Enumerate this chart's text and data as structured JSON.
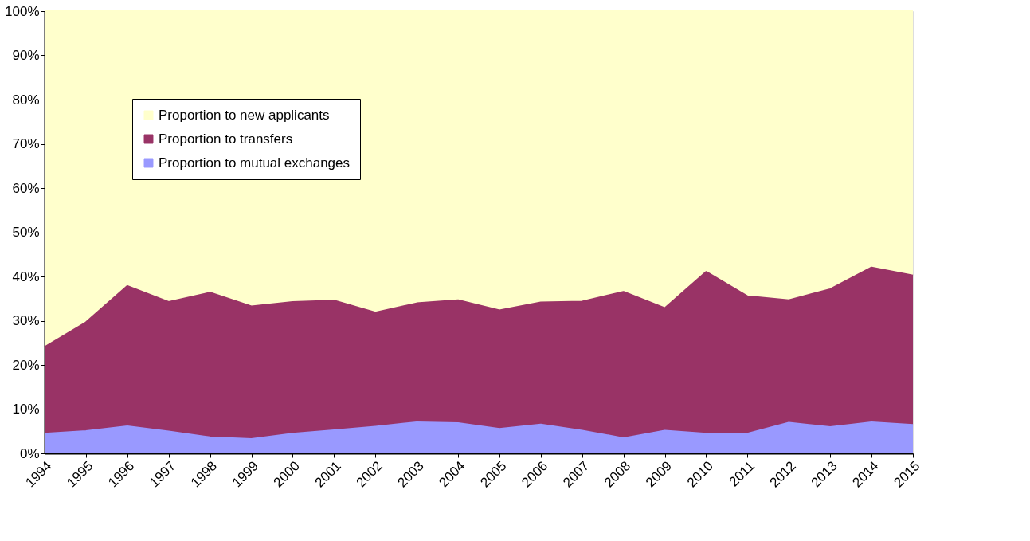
{
  "chart_data": {
    "type": "area",
    "stacked": true,
    "categories": [
      "1994",
      "1995",
      "1996",
      "1997",
      "1998",
      "1999",
      "2000",
      "2001",
      "2002",
      "2003",
      "2004",
      "2005",
      "2006",
      "2007",
      "2008",
      "2009",
      "2010",
      "2011",
      "2012",
      "2013",
      "2014",
      "2015"
    ],
    "series": [
      {
        "name": "Proportion to mutual exchanges",
        "color": "#9999ff",
        "values": [
          4.4,
          5.0,
          6.1,
          4.9,
          3.6,
          3.2,
          4.4,
          5.2,
          6.0,
          7.0,
          6.8,
          5.5,
          6.5,
          5.1,
          3.4,
          5.1,
          4.4,
          4.4,
          6.9,
          5.9,
          7.0,
          6.4
        ]
      },
      {
        "name": "Proportion to transfers",
        "color": "#993366",
        "values": [
          19.6,
          24.6,
          31.7,
          29.3,
          32.7,
          30.0,
          29.8,
          29.3,
          25.8,
          26.9,
          27.8,
          26.8,
          27.6,
          29.2,
          33.1,
          27.7,
          36.6,
          31.1,
          27.7,
          31.2,
          35.0,
          33.8
        ]
      },
      {
        "name": "Proportion to new applicants",
        "color": "#ffffcc",
        "values": [
          76.0,
          70.4,
          62.2,
          65.8,
          63.7,
          66.8,
          65.8,
          65.5,
          68.2,
          66.1,
          65.4,
          67.7,
          65.9,
          65.7,
          63.5,
          67.2,
          59.0,
          64.5,
          65.4,
          62.9,
          58.0,
          59.8
        ]
      }
    ],
    "ylim": [
      0,
      100
    ],
    "yticks": [
      {
        "value": 0,
        "label": "0%"
      },
      {
        "value": 10,
        "label": "10%"
      },
      {
        "value": 20,
        "label": "20%"
      },
      {
        "value": 30,
        "label": "30%"
      },
      {
        "value": 40,
        "label": "40%"
      },
      {
        "value": 50,
        "label": "50%"
      },
      {
        "value": 60,
        "label": "60%"
      },
      {
        "value": 70,
        "label": "70%"
      },
      {
        "value": 80,
        "label": "80%"
      },
      {
        "value": 90,
        "label": "90%"
      },
      {
        "value": 100,
        "label": "100%"
      }
    ],
    "grid": false,
    "legend": "top left"
  }
}
